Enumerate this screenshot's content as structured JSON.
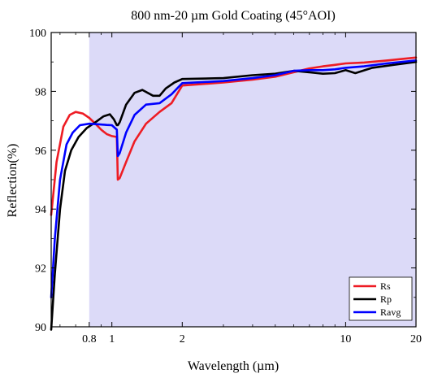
{
  "chart_data": {
    "type": "line",
    "title": "800 nm-20 µm Gold Coating (45°AOI)",
    "xlabel": "Wavelength (µm)",
    "ylabel": "Reflection(%)",
    "x_scale": "log",
    "xlim": [
      0.55,
      20
    ],
    "ylim": [
      90,
      100
    ],
    "x_ticks": [
      {
        "value": 0.8,
        "label": "0.8"
      },
      {
        "value": 1,
        "label": "1"
      },
      {
        "value": 2,
        "label": "2"
      },
      {
        "value": 10,
        "label": "10"
      },
      {
        "value": 20,
        "label": "20"
      }
    ],
    "y_ticks": [
      {
        "value": 90,
        "label": "90"
      },
      {
        "value": 92,
        "label": "92"
      },
      {
        "value": 94,
        "label": "94"
      },
      {
        "value": 96,
        "label": "96"
      },
      {
        "value": 98,
        "label": "98"
      },
      {
        "value": 100,
        "label": "100"
      }
    ],
    "grid": false,
    "shaded_region": {
      "x_from": 0.8,
      "x_to": 20,
      "color": "#dcdaf8"
    },
    "legend_position": "bottom-right",
    "series": [
      {
        "name": "Rs",
        "color": "#ee1c24",
        "points": [
          [
            0.55,
            93.8
          ],
          [
            0.58,
            95.6
          ],
          [
            0.62,
            96.8
          ],
          [
            0.66,
            97.2
          ],
          [
            0.7,
            97.3
          ],
          [
            0.75,
            97.25
          ],
          [
            0.8,
            97.1
          ],
          [
            0.85,
            96.9
          ],
          [
            0.9,
            96.7
          ],
          [
            0.95,
            96.55
          ],
          [
            1.0,
            96.48
          ],
          [
            1.05,
            96.45
          ],
          [
            1.06,
            95.0
          ],
          [
            1.08,
            95.05
          ],
          [
            1.15,
            95.6
          ],
          [
            1.25,
            96.3
          ],
          [
            1.4,
            96.9
          ],
          [
            1.6,
            97.3
          ],
          [
            1.8,
            97.6
          ],
          [
            2.0,
            98.2
          ],
          [
            3,
            98.3
          ],
          [
            4,
            98.4
          ],
          [
            5,
            98.5
          ],
          [
            6,
            98.65
          ],
          [
            7,
            98.78
          ],
          [
            8,
            98.85
          ],
          [
            9,
            98.9
          ],
          [
            10,
            98.95
          ],
          [
            12,
            98.98
          ],
          [
            15,
            99.05
          ],
          [
            20,
            99.15
          ]
        ]
      },
      {
        "name": "Rp",
        "color": "#000000",
        "points": [
          [
            0.55,
            89.9
          ],
          [
            0.57,
            91.8
          ],
          [
            0.6,
            94.0
          ],
          [
            0.63,
            95.3
          ],
          [
            0.67,
            96.0
          ],
          [
            0.72,
            96.45
          ],
          [
            0.78,
            96.75
          ],
          [
            0.85,
            96.95
          ],
          [
            0.92,
            97.15
          ],
          [
            0.98,
            97.22
          ],
          [
            1.02,
            97.05
          ],
          [
            1.05,
            96.85
          ],
          [
            1.06,
            96.85
          ],
          [
            1.08,
            96.95
          ],
          [
            1.15,
            97.55
          ],
          [
            1.25,
            97.95
          ],
          [
            1.35,
            98.05
          ],
          [
            1.5,
            97.85
          ],
          [
            1.6,
            97.85
          ],
          [
            1.7,
            98.1
          ],
          [
            1.85,
            98.3
          ],
          [
            2.0,
            98.42
          ],
          [
            3,
            98.45
          ],
          [
            4,
            98.55
          ],
          [
            5,
            98.6
          ],
          [
            6,
            98.7
          ],
          [
            7,
            98.65
          ],
          [
            8,
            98.6
          ],
          [
            9,
            98.62
          ],
          [
            10,
            98.72
          ],
          [
            11,
            98.62
          ],
          [
            13,
            98.8
          ],
          [
            16,
            98.9
          ],
          [
            20,
            99.0
          ]
        ]
      },
      {
        "name": "Ravg",
        "color": "#0000ff",
        "points": [
          [
            0.55,
            91.0
          ],
          [
            0.57,
            93.0
          ],
          [
            0.6,
            95.0
          ],
          [
            0.64,
            96.2
          ],
          [
            0.68,
            96.6
          ],
          [
            0.73,
            96.85
          ],
          [
            0.8,
            96.9
          ],
          [
            0.88,
            96.88
          ],
          [
            0.95,
            96.86
          ],
          [
            1.0,
            96.85
          ],
          [
            1.05,
            96.7
          ],
          [
            1.06,
            95.8
          ],
          [
            1.08,
            95.9
          ],
          [
            1.15,
            96.6
          ],
          [
            1.25,
            97.2
          ],
          [
            1.4,
            97.55
          ],
          [
            1.6,
            97.6
          ],
          [
            1.8,
            97.9
          ],
          [
            2.0,
            98.28
          ],
          [
            3,
            98.35
          ],
          [
            4,
            98.45
          ],
          [
            5,
            98.55
          ],
          [
            6,
            98.7
          ],
          [
            7,
            98.72
          ],
          [
            8,
            98.72
          ],
          [
            9,
            98.75
          ],
          [
            10,
            98.8
          ],
          [
            12,
            98.85
          ],
          [
            15,
            98.95
          ],
          [
            20,
            99.05
          ]
        ]
      }
    ]
  }
}
